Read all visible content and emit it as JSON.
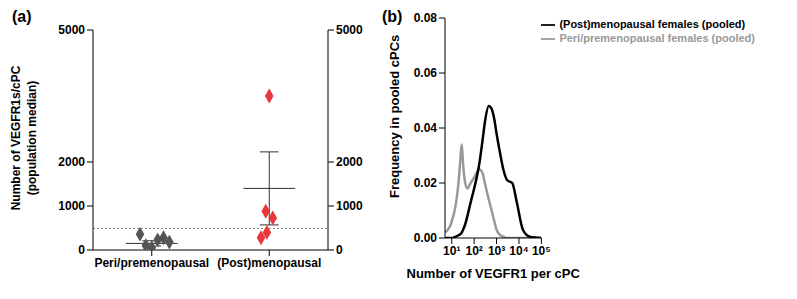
{
  "chart_data": [
    {
      "type": "scatter",
      "title": "(a)",
      "ylabel": [
        "Number of VEGFR1s/cPC",
        "(population median)"
      ],
      "ylim": [
        0,
        5000
      ],
      "yticks": [
        0,
        1000,
        2000,
        5000
      ],
      "xlim": [
        -0.5,
        1.5
      ],
      "xticks": [
        {
          "value": 0,
          "label": "Peri/premenopausal"
        },
        {
          "value": 1,
          "label": "(Post)menopausal"
        }
      ],
      "reference_line": 490,
      "series": [
        {
          "color": "#555555",
          "marker": "diamond",
          "x": [
            -0.1,
            0.05,
            0.1,
            -0.05,
            0.0,
            0.15
          ],
          "values": [
            360,
            230,
            280,
            100,
            50,
            180
          ],
          "mean": 150,
          "error_low": 90,
          "error_high": 210
        },
        {
          "color": "#e8383d",
          "marker": "diamond",
          "x": [
            1.0,
            0.97,
            1.03,
            0.98,
            0.93
          ],
          "values": [
            3500,
            880,
            730,
            400,
            280
          ],
          "mean": 1400,
          "error_low": 570,
          "error_high": 2230
        }
      ]
    },
    {
      "type": "line",
      "title": "(b)",
      "xlabel": "Number of VEGFR1 per cPC",
      "ylabel": "Frequency in pooled cPCs",
      "log": "x",
      "legend": "top",
      "xlim": [
        5,
        100000
      ],
      "xticks": [
        {
          "value": 10,
          "label": "10¹"
        },
        {
          "value": 100,
          "label": "10²"
        },
        {
          "value": 1000,
          "label": "10³"
        },
        {
          "value": 10000,
          "label": "10⁴"
        },
        {
          "value": 100000,
          "label": "10⁵"
        }
      ],
      "ylim": [
        0,
        0.08
      ],
      "yticks": [
        {
          "value": 0,
          "label": "0.00"
        },
        {
          "value": 0.02,
          "label": "0.02"
        },
        {
          "value": 0.04,
          "label": "0.04"
        },
        {
          "value": 0.06,
          "label": "0.06"
        },
        {
          "value": 0.08,
          "label": "0.08"
        }
      ],
      "x": [
        5,
        8,
        10,
        15,
        20,
        25,
        28,
        32,
        40,
        50,
        70,
        100,
        170,
        250,
        300,
        450,
        600,
        800,
        1000,
        1500,
        2000,
        3000,
        5000,
        8000,
        15000,
        30000,
        100000
      ],
      "series": [
        {
          "name": "Peri/premenopausal females (pooled)",
          "color": "#999999",
          "values": [
            0.002,
            0.004,
            0.006,
            0.012,
            0.02,
            0.03,
            0.034,
            0.027,
            0.02,
            0.018,
            0.02,
            0.022,
            0.025,
            0.023,
            0.02,
            0.014,
            0.01,
            0.006,
            0.003,
            0.001,
            0.0005,
            0.0,
            0.0,
            0.0,
            0.0,
            0.0,
            0.0
          ]
        },
        {
          "name": "(Post)menopausal females (pooled)",
          "color": "#000000",
          "values": [
            0.0,
            0.0,
            0.0,
            0.0005,
            0.001,
            0.0015,
            0.002,
            0.003,
            0.005,
            0.008,
            0.013,
            0.018,
            0.027,
            0.037,
            0.042,
            0.048,
            0.047,
            0.043,
            0.038,
            0.03,
            0.025,
            0.021,
            0.02,
            0.013,
            0.003,
            0.0005,
            0.0
          ]
        }
      ]
    }
  ]
}
